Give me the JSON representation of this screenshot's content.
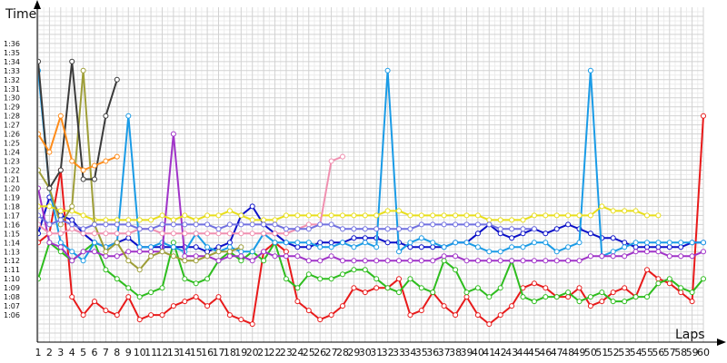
{
  "chart_data": {
    "type": "line",
    "title": "",
    "xlabel": "Laps",
    "ylabel": "Time",
    "xlim": [
      1,
      60
    ],
    "ylim_seconds": [
      63,
      100
    ],
    "grid": true,
    "legend": "none",
    "x_ticks": [
      "1",
      "2",
      "3",
      "4",
      "5",
      "6",
      "7",
      "8",
      "9",
      "10",
      "11",
      "12",
      "13",
      "14",
      "15",
      "16",
      "17",
      "18",
      "19",
      "20",
      "21",
      "22",
      "23",
      "24",
      "25",
      "26",
      "27",
      "28",
      "29",
      "30",
      "31",
      "32",
      "33",
      "34",
      "35",
      "36",
      "37",
      "38",
      "39",
      "40",
      "41",
      "42",
      "43",
      "44",
      "45",
      "46",
      "47",
      "48",
      "49",
      "50",
      "51",
      "52",
      "53",
      "54",
      "55",
      "56",
      "57",
      "58",
      "59",
      "60"
    ],
    "y_ticks": [
      "1:06",
      "1:07",
      "1:08",
      "1:09",
      "1:10",
      "1:11",
      "1:12",
      "1:13",
      "1:14",
      "1:15",
      "1:16",
      "1:17",
      "1:18",
      "1:19",
      "1:20",
      "1:21",
      "1:22",
      "1:23",
      "1:24",
      "1:25",
      "1:26",
      "1:27",
      "1:28",
      "1:29",
      "1:30",
      "1:31",
      "1:32",
      "1:33",
      "1:34",
      "1:35",
      "1:36"
    ],
    "series": [
      {
        "color": "#e81a1a",
        "values": [
          74,
          75,
          82,
          68,
          66,
          67.5,
          66.5,
          66,
          68,
          65.5,
          66,
          66,
          67,
          67.5,
          68,
          67,
          68,
          66,
          65.5,
          65,
          73,
          74,
          73,
          67.5,
          66.5,
          65.5,
          66,
          67,
          69,
          68.5,
          69,
          69,
          70,
          66,
          66.5,
          68.5,
          67,
          66,
          68,
          66,
          65,
          66,
          67,
          69,
          69.5,
          69,
          68,
          68,
          69,
          67,
          67.5,
          68.5,
          69,
          68,
          71,
          70,
          69.5,
          68.5,
          67.5,
          88
        ]
      },
      {
        "color": "#2ebd1e",
        "values": [
          70,
          74,
          73,
          72,
          73,
          74,
          71,
          70,
          69,
          68,
          68.5,
          69,
          74,
          70,
          69.5,
          70,
          72,
          73,
          72,
          73,
          72,
          74,
          70,
          69,
          70.5,
          70,
          70,
          70.5,
          71,
          71,
          70,
          69,
          68.5,
          70,
          69,
          68.5,
          72,
          71,
          68.5,
          69,
          68,
          69,
          72,
          68,
          67.5,
          68,
          68,
          68.5,
          67.5,
          68,
          68.5,
          67.5,
          67.5,
          68,
          68,
          69.5,
          70,
          69,
          68.5,
          70
        ]
      },
      {
        "color": "#0b10c8",
        "values": [
          75,
          79,
          77,
          76.5,
          75,
          74,
          73.5,
          74,
          74.5,
          73.5,
          73.5,
          73.5,
          73.5,
          73.5,
          73.5,
          73,
          73.5,
          74,
          77,
          78,
          76,
          75,
          74,
          73.5,
          73.5,
          74,
          74,
          74,
          74.5,
          74.5,
          74.5,
          74,
          74,
          73.5,
          73.5,
          73.5,
          73.5,
          74,
          74,
          75,
          76,
          75,
          74.5,
          75,
          75.5,
          75,
          75.5,
          76,
          75.5,
          75,
          74.5,
          74.5,
          74,
          73.5,
          73.5,
          73.5,
          73.5,
          73.5,
          74,
          74
        ]
      },
      {
        "color": "#1a9be6",
        "values": [
          93,
          80,
          74,
          73,
          72,
          74,
          73.5,
          74,
          88,
          73.5,
          73.5,
          74,
          73.5,
          73,
          75,
          73.5,
          73,
          73.5,
          73,
          73,
          75,
          74,
          74,
          74,
          74,
          73.5,
          73.5,
          74,
          73.5,
          74,
          73.5,
          93,
          73,
          74,
          74.5,
          74,
          73.5,
          74,
          74,
          73.5,
          73,
          73,
          73.5,
          73.5,
          74,
          74,
          73,
          73.5,
          74,
          93,
          72.5,
          73,
          73.5,
          74,
          74,
          74,
          74,
          74,
          74,
          74
        ]
      },
      {
        "color": "#a033c8",
        "values": [
          80,
          74,
          73.5,
          72,
          73,
          73,
          72.5,
          72.5,
          73,
          73,
          73,
          73,
          86,
          72.5,
          72.5,
          72.5,
          72,
          72.5,
          72.5,
          72,
          73,
          72.5,
          72.5,
          72.5,
          72,
          72,
          72.5,
          72,
          72,
          72,
          72,
          72,
          72,
          72,
          72,
          72,
          72.5,
          72.5,
          72,
          72,
          72,
          72,
          72,
          72,
          72,
          72,
          72,
          72,
          72,
          72.5,
          72.5,
          72.5,
          72.5,
          73,
          73,
          73,
          72.5,
          72.5,
          72.5,
          73
        ]
      },
      {
        "color": "#e8de1a",
        "values": [
          78,
          78,
          77.5,
          77.5,
          77,
          76.5,
          76.5,
          76.5,
          76.5,
          76.5,
          76.5,
          77,
          76.5,
          77,
          76.5,
          77,
          77,
          77.5,
          77,
          76.5,
          76.5,
          76.5,
          77,
          77,
          77,
          77,
          77,
          77,
          77,
          77,
          77,
          77.5,
          77.5,
          77,
          77,
          77,
          77,
          77,
          77,
          77,
          76.5,
          76.5,
          76.5,
          76.5,
          77,
          77,
          77,
          77,
          77,
          77,
          78,
          77.5,
          77.5,
          77.5,
          77,
          77
        ]
      },
      {
        "color": "#9e9e38",
        "values": [
          82,
          80,
          76,
          78,
          93,
          76,
          73,
          74,
          72,
          71,
          72.5,
          73,
          72.5,
          72,
          72,
          72.5,
          73,
          73,
          73.5
        ]
      },
      {
        "color": "#3a3a3a",
        "values": [
          94,
          80,
          82,
          94,
          81,
          81,
          88,
          92
        ]
      },
      {
        "color": "#ff8c1a",
        "values": [
          86,
          84,
          88,
          83,
          82,
          82.5,
          83,
          83.5
        ]
      },
      {
        "color": "#f090b0",
        "values": [
          76,
          75,
          75,
          75.5,
          75,
          75,
          75,
          75,
          75,
          75.5,
          75.5,
          75,
          75,
          75,
          75,
          75,
          75,
          75,
          75,
          75,
          75,
          75,
          75,
          75.5,
          76,
          76,
          83,
          83.5
        ]
      },
      {
        "color": "#7070e0",
        "values": [
          77,
          76,
          76.5,
          76,
          75.5,
          76,
          76,
          76,
          76,
          75.5,
          75.5,
          76,
          76,
          76,
          76,
          76,
          75.5,
          76,
          76,
          76,
          76,
          76,
          75.5,
          75.5,
          75.5,
          76,
          76,
          75.5,
          75.5,
          75.5,
          75.5,
          75.5,
          75.5,
          75.5,
          76,
          76,
          76,
          76,
          76,
          76,
          76,
          75.5,
          75.5,
          75.5,
          75.5
        ]
      }
    ]
  }
}
